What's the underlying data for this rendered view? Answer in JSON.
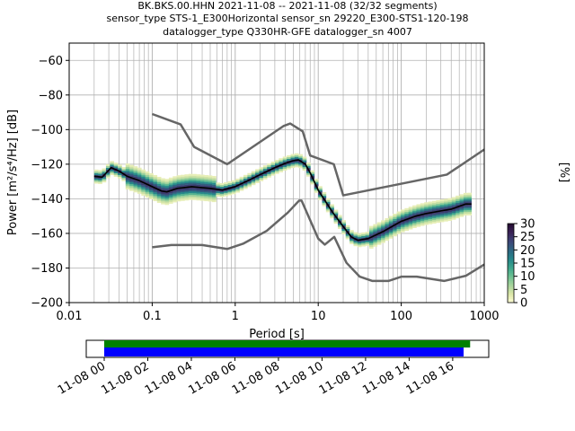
{
  "title": {
    "line1": "BK.BKS.00.HHN   2021-11-08 -- 2021-11-08  (32/32 segments)",
    "line2": "sensor_type STS-1_E300Horizontal sensor_sn 29220_E300-STS1-120-198",
    "line3": "datalogger_type Q330HR-GFE datalogger_sn 4007"
  },
  "chart_data": {
    "type": "heatmap",
    "xlabel": "Period [s]",
    "ylabel": "Power [m²/s⁴/Hz] [dB]",
    "xscale": "log",
    "xlim": [
      0.01,
      1000
    ],
    "ylim": [
      -200,
      -50
    ],
    "x_ticks": [
      {
        "v": 0.01,
        "label": "0.01"
      },
      {
        "v": 0.1,
        "label": "0.1"
      },
      {
        "v": 1,
        "label": "1"
      },
      {
        "v": 10,
        "label": "10"
      },
      {
        "v": 100,
        "label": "100"
      },
      {
        "v": 1000,
        "label": "1000"
      }
    ],
    "y_ticks": [
      {
        "v": -60,
        "label": "−60"
      },
      {
        "v": -80,
        "label": "−80"
      },
      {
        "v": -100,
        "label": "−100"
      },
      {
        "v": -120,
        "label": "−120"
      },
      {
        "v": -140,
        "label": "−140"
      },
      {
        "v": -160,
        "label": "−160"
      },
      {
        "v": -180,
        "label": "−180"
      },
      {
        "v": -200,
        "label": "−200"
      }
    ],
    "grid": true,
    "noise_model_high": [
      [
        0.1,
        -91
      ],
      [
        0.22,
        -97
      ],
      [
        0.32,
        -110
      ],
      [
        0.8,
        -120
      ],
      [
        3.8,
        -98
      ],
      [
        4.6,
        -96.5
      ],
      [
        6.5,
        -101
      ],
      [
        8,
        -115
      ],
      [
        15.4,
        -120
      ],
      [
        20,
        -138
      ],
      [
        354.8,
        -126
      ],
      [
        1000,
        -111.5
      ]
    ],
    "noise_model_low": [
      [
        0.1,
        -168
      ],
      [
        0.17,
        -166.7
      ],
      [
        0.4,
        -166.7
      ],
      [
        0.8,
        -169
      ],
      [
        1.24,
        -166
      ],
      [
        2.4,
        -158.5
      ],
      [
        4.3,
        -148
      ],
      [
        5.9,
        -141
      ],
      [
        6.3,
        -141
      ],
      [
        10,
        -163
      ],
      [
        12,
        -166.5
      ],
      [
        15.6,
        -162
      ],
      [
        21.9,
        -177
      ],
      [
        31.6,
        -185
      ],
      [
        45,
        -187.5
      ],
      [
        70,
        -187.5
      ],
      [
        101,
        -185
      ],
      [
        154,
        -185
      ],
      [
        328,
        -187.5
      ],
      [
        600,
        -184.5
      ],
      [
        1000,
        -178
      ]
    ],
    "mean_psd": [
      [
        0.02,
        -127
      ],
      [
        0.025,
        -127.5
      ],
      [
        0.028,
        -125
      ],
      [
        0.032,
        -122
      ],
      [
        0.04,
        -124
      ],
      [
        0.05,
        -127
      ],
      [
        0.07,
        -129.5
      ],
      [
        0.1,
        -133
      ],
      [
        0.13,
        -135.5
      ],
      [
        0.15,
        -136
      ],
      [
        0.2,
        -134
      ],
      [
        0.3,
        -133
      ],
      [
        0.5,
        -134
      ],
      [
        0.7,
        -135
      ],
      [
        1,
        -133
      ],
      [
        1.5,
        -129
      ],
      [
        2,
        -126
      ],
      [
        3,
        -122
      ],
      [
        4,
        -119.5
      ],
      [
        5,
        -118
      ],
      [
        5.8,
        -117.5
      ],
      [
        7,
        -120
      ],
      [
        8,
        -125
      ],
      [
        10,
        -135
      ],
      [
        15,
        -148
      ],
      [
        20,
        -156
      ],
      [
        25,
        -162
      ],
      [
        30,
        -164
      ],
      [
        40,
        -163
      ],
      [
        60,
        -159
      ],
      [
        100,
        -153
      ],
      [
        150,
        -150
      ],
      [
        200,
        -148.5
      ],
      [
        300,
        -147
      ],
      [
        400,
        -146
      ],
      [
        600,
        -143
      ],
      [
        700,
        -143
      ]
    ],
    "colorbar": {
      "label": "[%]",
      "range": [
        0,
        30
      ],
      "ticks": [
        0,
        5,
        10,
        15,
        20,
        25,
        30
      ],
      "colormap": [
        "#fffed6",
        "#dbe6a8",
        "#a8d59d",
        "#6ec192",
        "#3da68d",
        "#25868a",
        "#2e6682",
        "#3d4577",
        "#3b2358",
        "#250b30"
      ]
    },
    "colors": {
      "noise_model": "#666666",
      "mean": "#000000",
      "grid": "#b0b0b0",
      "coverage_top": "#008000",
      "coverage_bottom": "#0000ff"
    },
    "coverage": {
      "ticks": [
        {
          "h": 0,
          "label": "11-08 00"
        },
        {
          "h": 2,
          "label": "11-08 02"
        },
        {
          "h": 4,
          "label": "11-08 04"
        },
        {
          "h": 6,
          "label": "11-08 06"
        },
        {
          "h": 8,
          "label": "11-08 08"
        },
        {
          "h": 10,
          "label": "11-08 10"
        },
        {
          "h": 12,
          "label": "11-08 12"
        },
        {
          "h": 14,
          "label": "11-08 14"
        },
        {
          "h": 16,
          "label": "11-08 16"
        }
      ],
      "top_bar_hours": [
        0,
        16.8
      ],
      "bottom_bar_hours": [
        0,
        16.5
      ]
    }
  }
}
